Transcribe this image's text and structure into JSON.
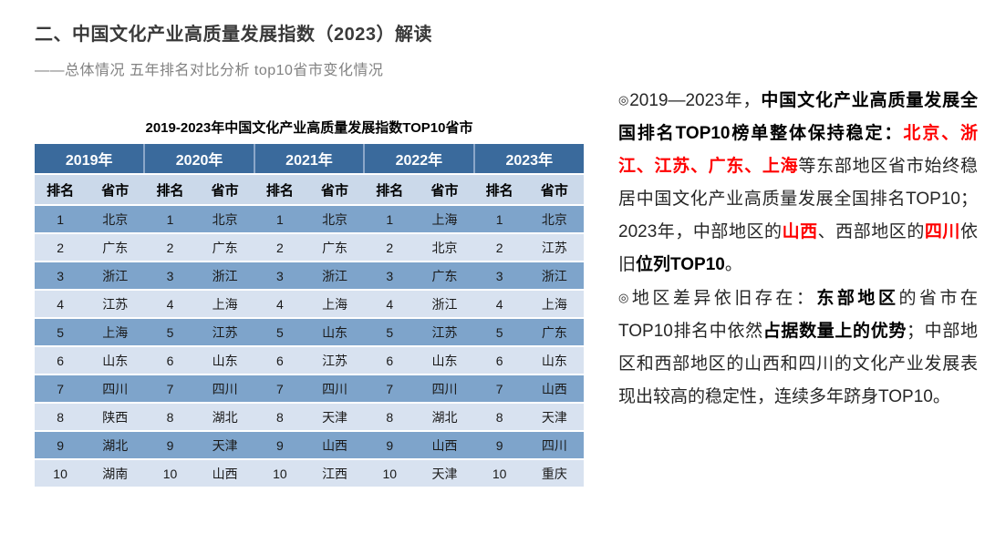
{
  "slide": {
    "title": "二、中国文化产业高质量发展指数（2023）解读",
    "subtitle": "——总体情况 五年排名对比分析  top10省市变化情况"
  },
  "colors": {
    "year_header_bg": "#3A6A9C",
    "year_header_separator": "#8BA7C9",
    "sub_header_bg": "#CBD9EA",
    "row_odd_bg": "#7EA4CB",
    "row_even_bg": "#D8E2F0",
    "highlight_red": "#FF0000"
  },
  "table": {
    "title": "2019-2023年中国文化产业高质量发展指数TOP10省市",
    "year_headers": [
      "2019年",
      "2020年",
      "2021年",
      "2022年",
      "2023年"
    ],
    "sub_headers": [
      "排名",
      "省市"
    ],
    "rows": [
      [
        "1",
        "北京",
        "1",
        "北京",
        "1",
        "北京",
        "1",
        "上海",
        "1",
        "北京"
      ],
      [
        "2",
        "广东",
        "2",
        "广东",
        "2",
        "广东",
        "2",
        "北京",
        "2",
        "江苏"
      ],
      [
        "3",
        "浙江",
        "3",
        "浙江",
        "3",
        "浙江",
        "3",
        "广东",
        "3",
        "浙江"
      ],
      [
        "4",
        "江苏",
        "4",
        "上海",
        "4",
        "上海",
        "4",
        "浙江",
        "4",
        "上海"
      ],
      [
        "5",
        "上海",
        "5",
        "江苏",
        "5",
        "山东",
        "5",
        "江苏",
        "5",
        "广东"
      ],
      [
        "6",
        "山东",
        "6",
        "山东",
        "6",
        "江苏",
        "6",
        "山东",
        "6",
        "山东"
      ],
      [
        "7",
        "四川",
        "7",
        "四川",
        "7",
        "四川",
        "7",
        "四川",
        "7",
        "山西"
      ],
      [
        "8",
        "陕西",
        "8",
        "湖北",
        "8",
        "天津",
        "8",
        "湖北",
        "8",
        "天津"
      ],
      [
        "9",
        "湖北",
        "9",
        "天津",
        "9",
        "山西",
        "9",
        "山西",
        "9",
        "四川"
      ],
      [
        "10",
        "湖南",
        "10",
        "山西",
        "10",
        "江西",
        "10",
        "天津",
        "10",
        "重庆"
      ]
    ]
  },
  "analysis": {
    "paragraph1": [
      {
        "t": "◎",
        "s": "bullet"
      },
      {
        "t": "2019—2023年，",
        "s": "normal"
      },
      {
        "t": "中国文化产业高质量发展全国排名TOP10榜单整体保持稳定：",
        "s": "bold"
      },
      {
        "t": "北京、浙江、江苏、广东、上海",
        "s": "redbold"
      },
      {
        "t": "等东部地区省市始终稳居中国文化产业高质量发展全国排名TOP10；2023年，中部地区的",
        "s": "normal"
      },
      {
        "t": "山西",
        "s": "redbold"
      },
      {
        "t": "、西部地区的",
        "s": "normal"
      },
      {
        "t": "四川",
        "s": "redbold"
      },
      {
        "t": "依旧",
        "s": "normal"
      },
      {
        "t": "位列TOP10",
        "s": "bold"
      },
      {
        "t": "。",
        "s": "normal"
      }
    ],
    "paragraph2": [
      {
        "t": "◎",
        "s": "bullet"
      },
      {
        "t": "地区差异依旧存在：",
        "s": "normal"
      },
      {
        "t": "东部地区",
        "s": "bold"
      },
      {
        "t": "的省市在TOP10排名中依然",
        "s": "normal"
      },
      {
        "t": "占据数量上的优势",
        "s": "bold"
      },
      {
        "t": "；中部地区和西部地区的山西和四川的文化产业发展表现出较高的稳定性，连续多年跻身TOP10。",
        "s": "normal"
      }
    ]
  }
}
